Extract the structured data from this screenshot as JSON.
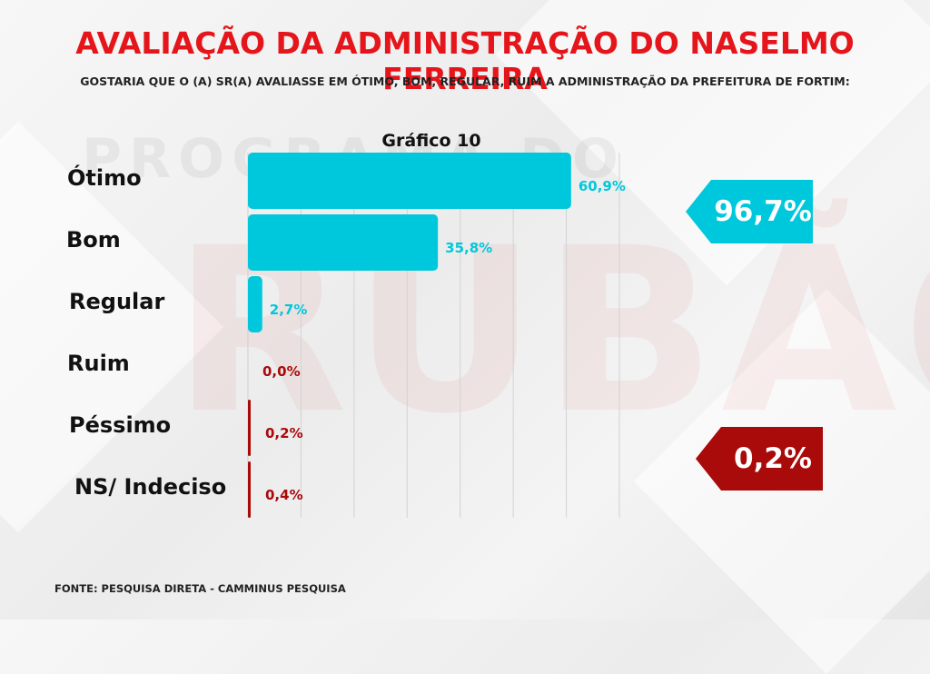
{
  "header": {
    "title": "AVALIAÇÃO DA ADMINISTRAÇÃO DO NASELMO FERREIRA",
    "subtitle": "GOSTARIA QUE O (A) SR(A) AVALIASSE EM ÓTIMO, BOM, REGULAR, RUIM A ADMINISTRAÇÃO DA PREFEITURA DE FORTIM:"
  },
  "watermark": {
    "top": "PROGRAMA DO",
    "main": "RUBÃO"
  },
  "colors": {
    "title": "#e5161b",
    "positive": "#00c8dc",
    "negative": "#a90a0a"
  },
  "chart_data": {
    "type": "bar",
    "orientation": "horizontal",
    "title": "Gráfico 10",
    "categories": [
      "Ótimo",
      "Bom",
      "Regular",
      "Ruim",
      "Péssimo",
      "NS/ Indeciso"
    ],
    "values": [
      60.9,
      35.8,
      2.7,
      0.0,
      0.2,
      0.4
    ],
    "value_labels": [
      "60,9%",
      "35,8%",
      "2,7%",
      "0,0%",
      "0,2%",
      "0,4%"
    ],
    "bar_colors": [
      "#00c8dc",
      "#00c8dc",
      "#00c8dc",
      "#a90a0a",
      "#a90a0a",
      "#a90a0a"
    ],
    "xlim": [
      0,
      70
    ],
    "grid": true,
    "legend": "none"
  },
  "badges": {
    "positive": {
      "label": "96,7%",
      "color": "#00c8dc"
    },
    "negative": {
      "label": "0,2%",
      "color": "#a90a0a"
    }
  },
  "footer": {
    "source": "FONTE: PESQUISA DIRETA - CAMMINUS PESQUISA"
  }
}
